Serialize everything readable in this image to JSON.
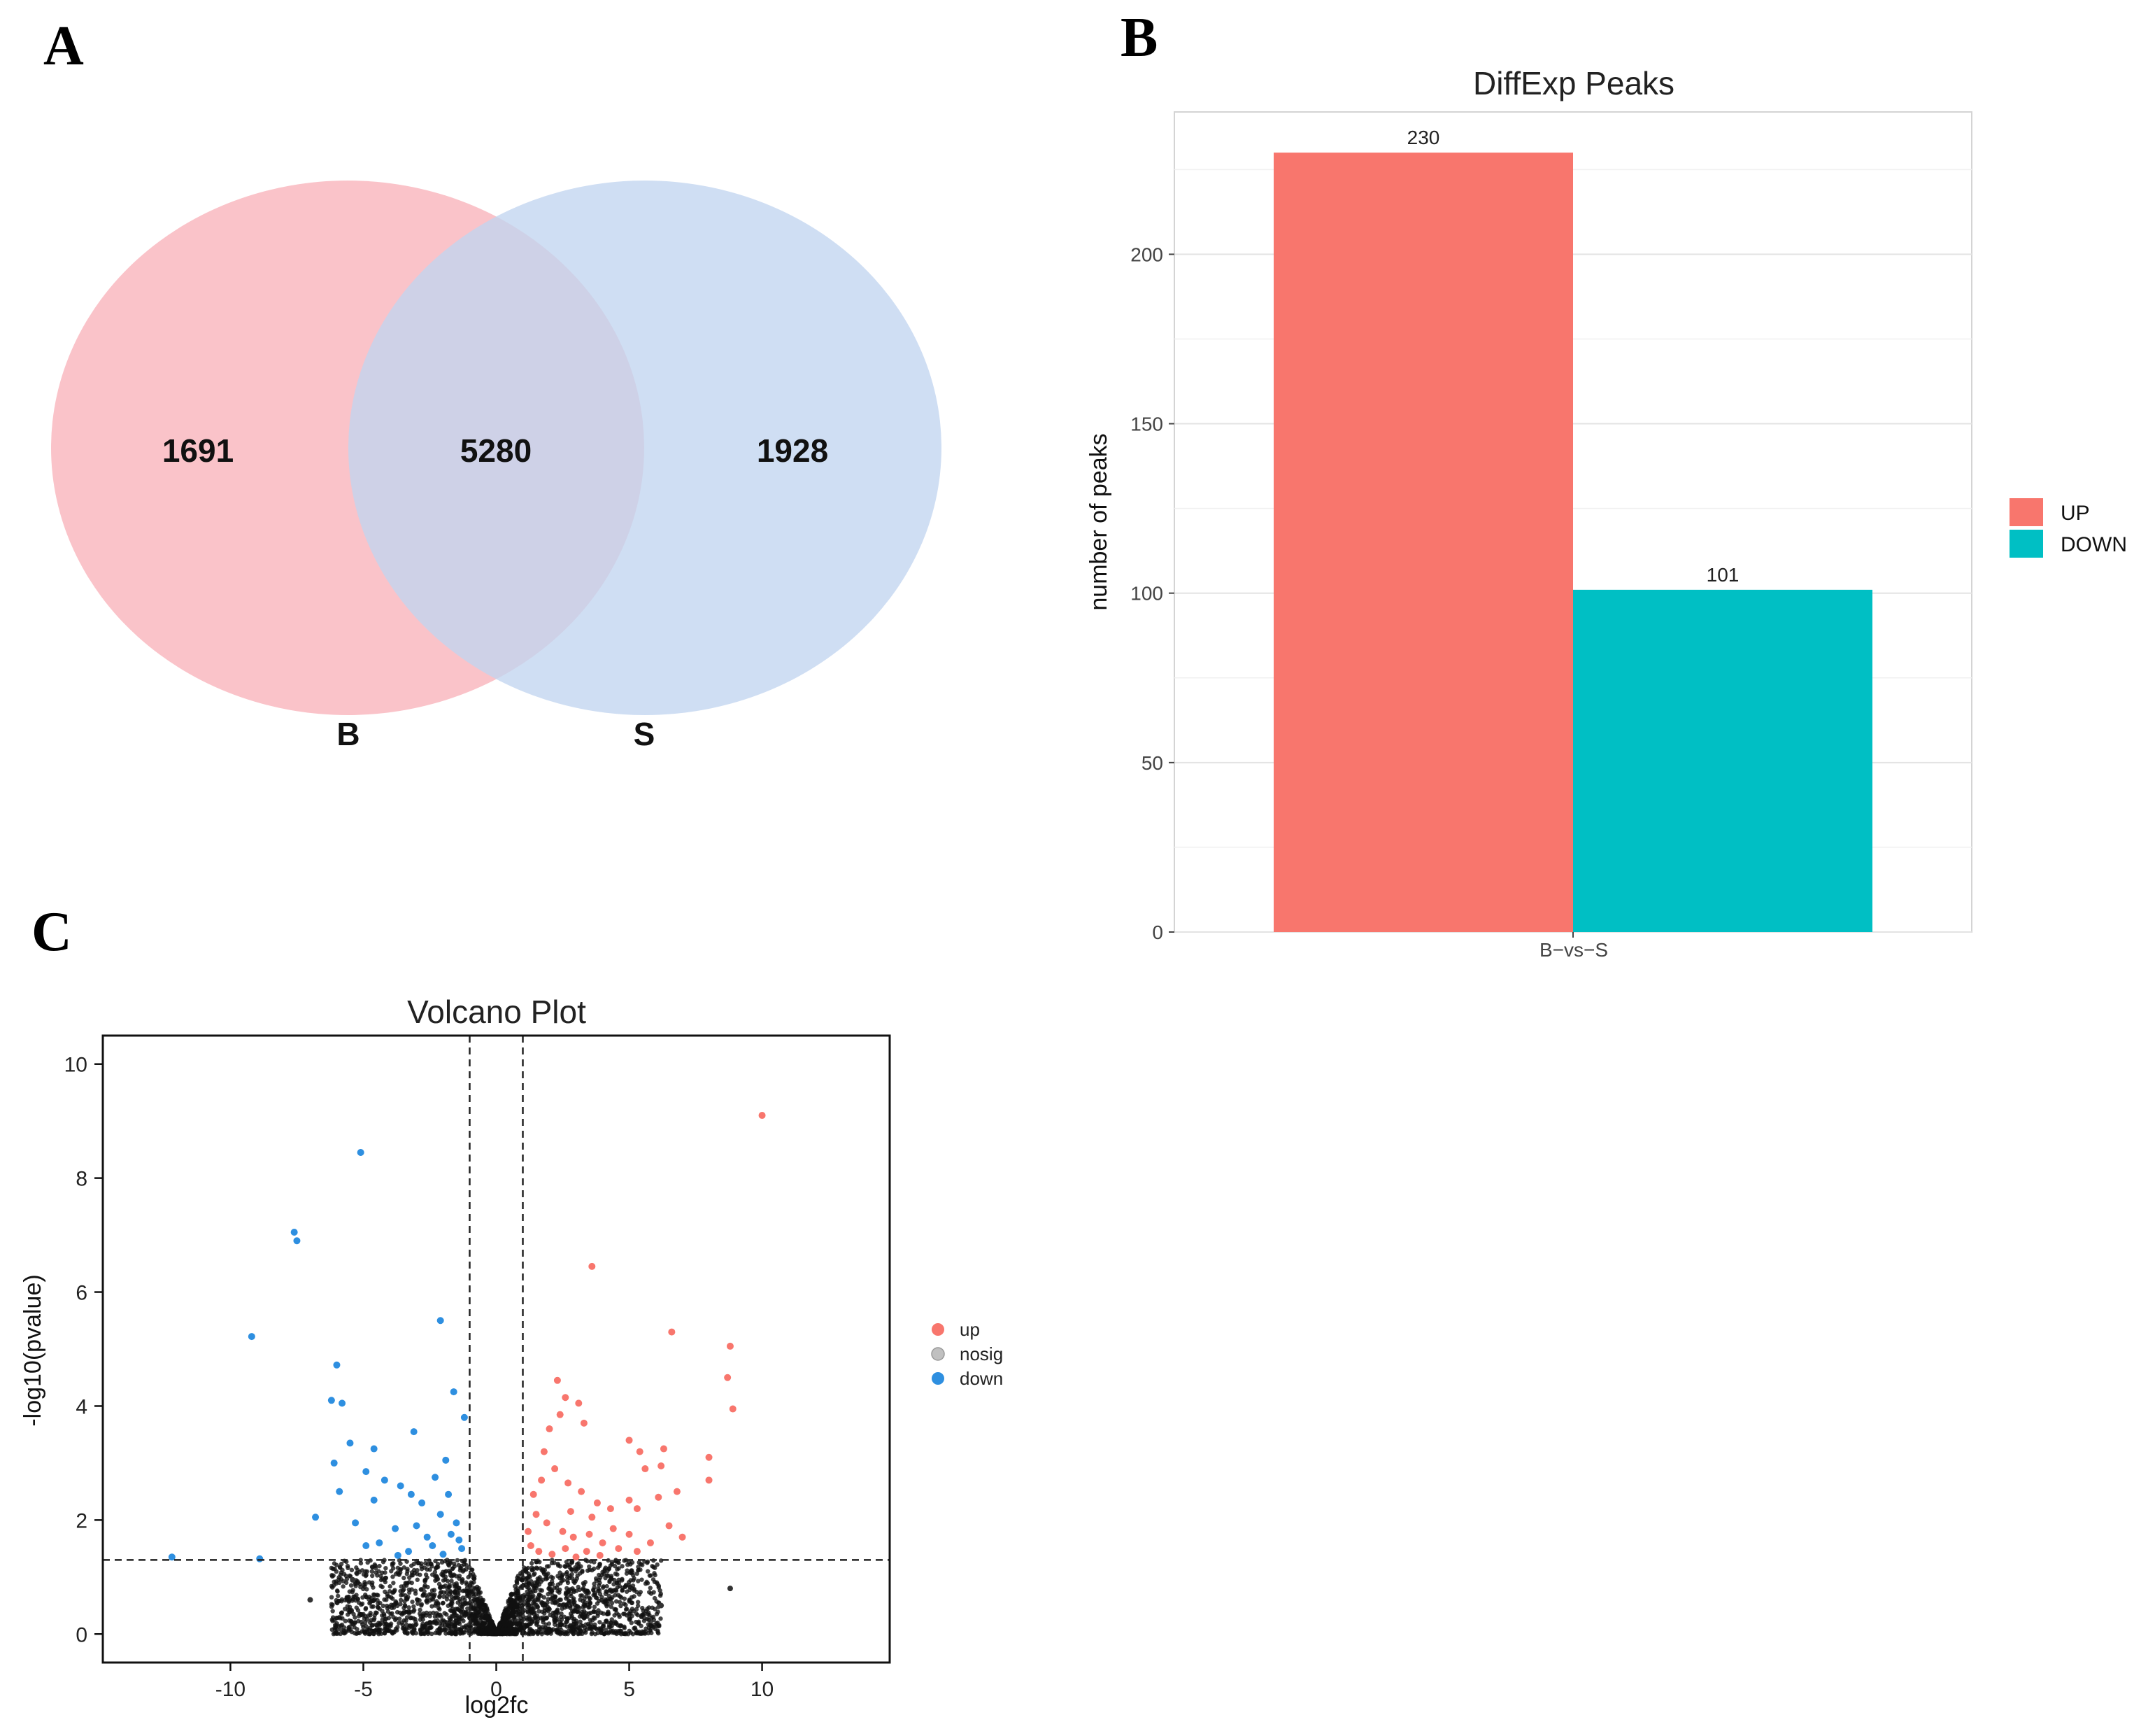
{
  "panels": {
    "a": "A",
    "b": "B",
    "c": "C"
  },
  "chart_data": [
    {
      "type": "venn",
      "sets": [
        {
          "name": "B",
          "only": 1691,
          "color": "#f9b9c0"
        },
        {
          "name": "S",
          "only": 1928,
          "color": "#c2d5ef"
        }
      ],
      "intersection": 5280,
      "labels": {
        "left_only": "1691",
        "overlap": "5280",
        "right_only": "1928",
        "set_b": "B",
        "set_s": "S"
      }
    },
    {
      "type": "bar",
      "title": "DiffExp Peaks",
      "xlabel": "",
      "ylabel": "number of peaks",
      "categories": [
        "B−vs−S"
      ],
      "series": [
        {
          "name": "UP",
          "values": [
            230
          ],
          "color": "#f8766d",
          "label": "230"
        },
        {
          "name": "DOWN",
          "values": [
            101
          ],
          "color": "#00bfc4",
          "label": "101"
        }
      ],
      "ylim": [
        0,
        242
      ],
      "yticks": [
        0,
        50,
        100,
        150,
        200
      ],
      "ytick_labels": [
        "0",
        "50",
        "100",
        "150",
        "200"
      ],
      "grid": true,
      "legend": "right"
    },
    {
      "type": "scatter",
      "title": "Volcano Plot",
      "xlabel": "log2fc",
      "ylabel": "-log10(pvalue)",
      "xlim": [
        -14.8,
        14.8
      ],
      "ylim": [
        -0.5,
        10.5
      ],
      "xticks": [
        -10,
        -5,
        0,
        5,
        10
      ],
      "xtick_labels": [
        "-10",
        "-5",
        "0",
        "5",
        "10"
      ],
      "yticks": [
        0,
        2,
        4,
        6,
        8,
        10
      ],
      "ytick_labels": [
        "0",
        "2",
        "4",
        "6",
        "8",
        "10"
      ],
      "thresholds": {
        "log2fc": [
          -1,
          1
        ],
        "neg_log10_p": 1.3
      },
      "legend": "right",
      "series": [
        {
          "name": "up",
          "color": "#f8766d",
          "points": [
            [
              10.0,
              9.1
            ],
            [
              3.6,
              6.45
            ],
            [
              6.6,
              5.3
            ],
            [
              8.8,
              5.05
            ],
            [
              8.7,
              4.5
            ],
            [
              8.9,
              3.95
            ],
            [
              2.3,
              4.45
            ],
            [
              2.6,
              4.15
            ],
            [
              3.1,
              4.05
            ],
            [
              2.0,
              3.6
            ],
            [
              2.4,
              3.85
            ],
            [
              3.3,
              3.7
            ],
            [
              5.0,
              3.4
            ],
            [
              6.3,
              3.25
            ],
            [
              5.4,
              3.2
            ],
            [
              8.0,
              3.1
            ],
            [
              5.6,
              2.9
            ],
            [
              6.2,
              2.95
            ],
            [
              8.0,
              2.7
            ],
            [
              6.1,
              2.4
            ],
            [
              6.8,
              2.5
            ],
            [
              5.0,
              2.35
            ],
            [
              5.3,
              2.2
            ],
            [
              6.5,
              1.9
            ],
            [
              7.0,
              1.7
            ],
            [
              1.8,
              3.2
            ],
            [
              2.2,
              2.9
            ],
            [
              2.7,
              2.65
            ],
            [
              3.2,
              2.5
            ],
            [
              3.8,
              2.3
            ],
            [
              4.3,
              2.2
            ],
            [
              1.5,
              2.1
            ],
            [
              1.9,
              1.95
            ],
            [
              2.5,
              1.8
            ],
            [
              2.9,
              1.7
            ],
            [
              3.5,
              1.75
            ],
            [
              4.0,
              1.6
            ],
            [
              4.6,
              1.5
            ],
            [
              1.3,
              1.55
            ],
            [
              1.6,
              1.45
            ],
            [
              2.1,
              1.4
            ],
            [
              2.6,
              1.5
            ],
            [
              3.0,
              1.35
            ],
            [
              3.4,
              1.45
            ],
            [
              3.9,
              1.38
            ],
            [
              5.3,
              1.45
            ],
            [
              5.8,
              1.6
            ],
            [
              1.2,
              1.8
            ],
            [
              1.4,
              2.45
            ],
            [
              2.8,
              2.15
            ],
            [
              3.6,
              2.05
            ],
            [
              4.4,
              1.85
            ],
            [
              5.0,
              1.75
            ],
            [
              1.7,
              2.7
            ]
          ]
        },
        {
          "name": "nosig",
          "color": "#c0c0c0",
          "points": []
        },
        {
          "name": "down",
          "color": "#2e8fe0",
          "points": [
            [
              -5.1,
              8.45
            ],
            [
              -7.6,
              7.05
            ],
            [
              -7.5,
              6.9
            ],
            [
              -2.1,
              5.5
            ],
            [
              -9.2,
              5.22
            ],
            [
              -6.0,
              4.72
            ],
            [
              -6.2,
              4.1
            ],
            [
              -5.8,
              4.05
            ],
            [
              -1.6,
              4.25
            ],
            [
              -3.1,
              3.55
            ],
            [
              -1.2,
              3.8
            ],
            [
              -5.5,
              3.35
            ],
            [
              -4.6,
              3.25
            ],
            [
              -6.1,
              3.0
            ],
            [
              -4.9,
              2.85
            ],
            [
              -4.2,
              2.7
            ],
            [
              -5.9,
              2.5
            ],
            [
              -3.6,
              2.6
            ],
            [
              -4.6,
              2.35
            ],
            [
              -3.2,
              2.45
            ],
            [
              -6.8,
              2.05
            ],
            [
              -5.3,
              1.95
            ],
            [
              -2.3,
              2.75
            ],
            [
              -2.8,
              2.3
            ],
            [
              -2.1,
              2.1
            ],
            [
              -1.8,
              2.45
            ],
            [
              -1.5,
              1.95
            ],
            [
              -3.8,
              1.85
            ],
            [
              -4.9,
              1.55
            ],
            [
              -2.6,
              1.7
            ],
            [
              -1.3,
              1.5
            ],
            [
              -3.3,
              1.45
            ],
            [
              -2.0,
              1.4
            ],
            [
              -1.4,
              1.65
            ],
            [
              -12.2,
              1.35
            ],
            [
              -8.9,
              1.32
            ],
            [
              -4.4,
              1.6
            ],
            [
              -3.0,
              1.9
            ],
            [
              -1.7,
              1.75
            ],
            [
              -2.4,
              1.55
            ],
            [
              -3.7,
              1.38
            ],
            [
              -1.9,
              3.05
            ]
          ]
        }
      ]
    }
  ]
}
